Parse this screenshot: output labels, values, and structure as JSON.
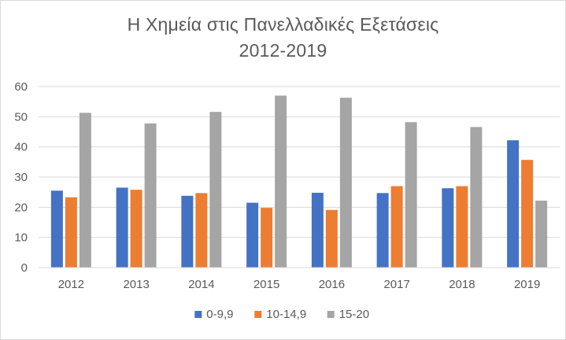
{
  "chart_data": {
    "type": "bar",
    "title": "Η Χημεία στις Πανελλαδικές Εξετάσεις",
    "subtitle": "2012-2019",
    "xlabel": "",
    "ylabel": "",
    "categories": [
      "2012",
      "2013",
      "2014",
      "2015",
      "2016",
      "2017",
      "2018",
      "2019"
    ],
    "series": [
      {
        "name": "0-9,9",
        "color": "#4472c4",
        "values": [
          25.5,
          26.5,
          23.8,
          21.5,
          24.8,
          24.7,
          26.3,
          42.2
        ]
      },
      {
        "name": "10-14,9",
        "color": "#ed7d31",
        "values": [
          23.3,
          25.8,
          24.7,
          19.8,
          19.1,
          27.0,
          27.0,
          35.7
        ]
      },
      {
        "name": "15-20",
        "color": "#a5a5a5",
        "values": [
          51.3,
          47.8,
          51.6,
          57.0,
          56.3,
          48.2,
          46.6,
          22.2
        ]
      }
    ],
    "y_ticks": [
      "0",
      "10",
      "20",
      "30",
      "40",
      "50",
      "60"
    ],
    "ylim": [
      0,
      60
    ],
    "grid": true,
    "legend": "bottom"
  }
}
